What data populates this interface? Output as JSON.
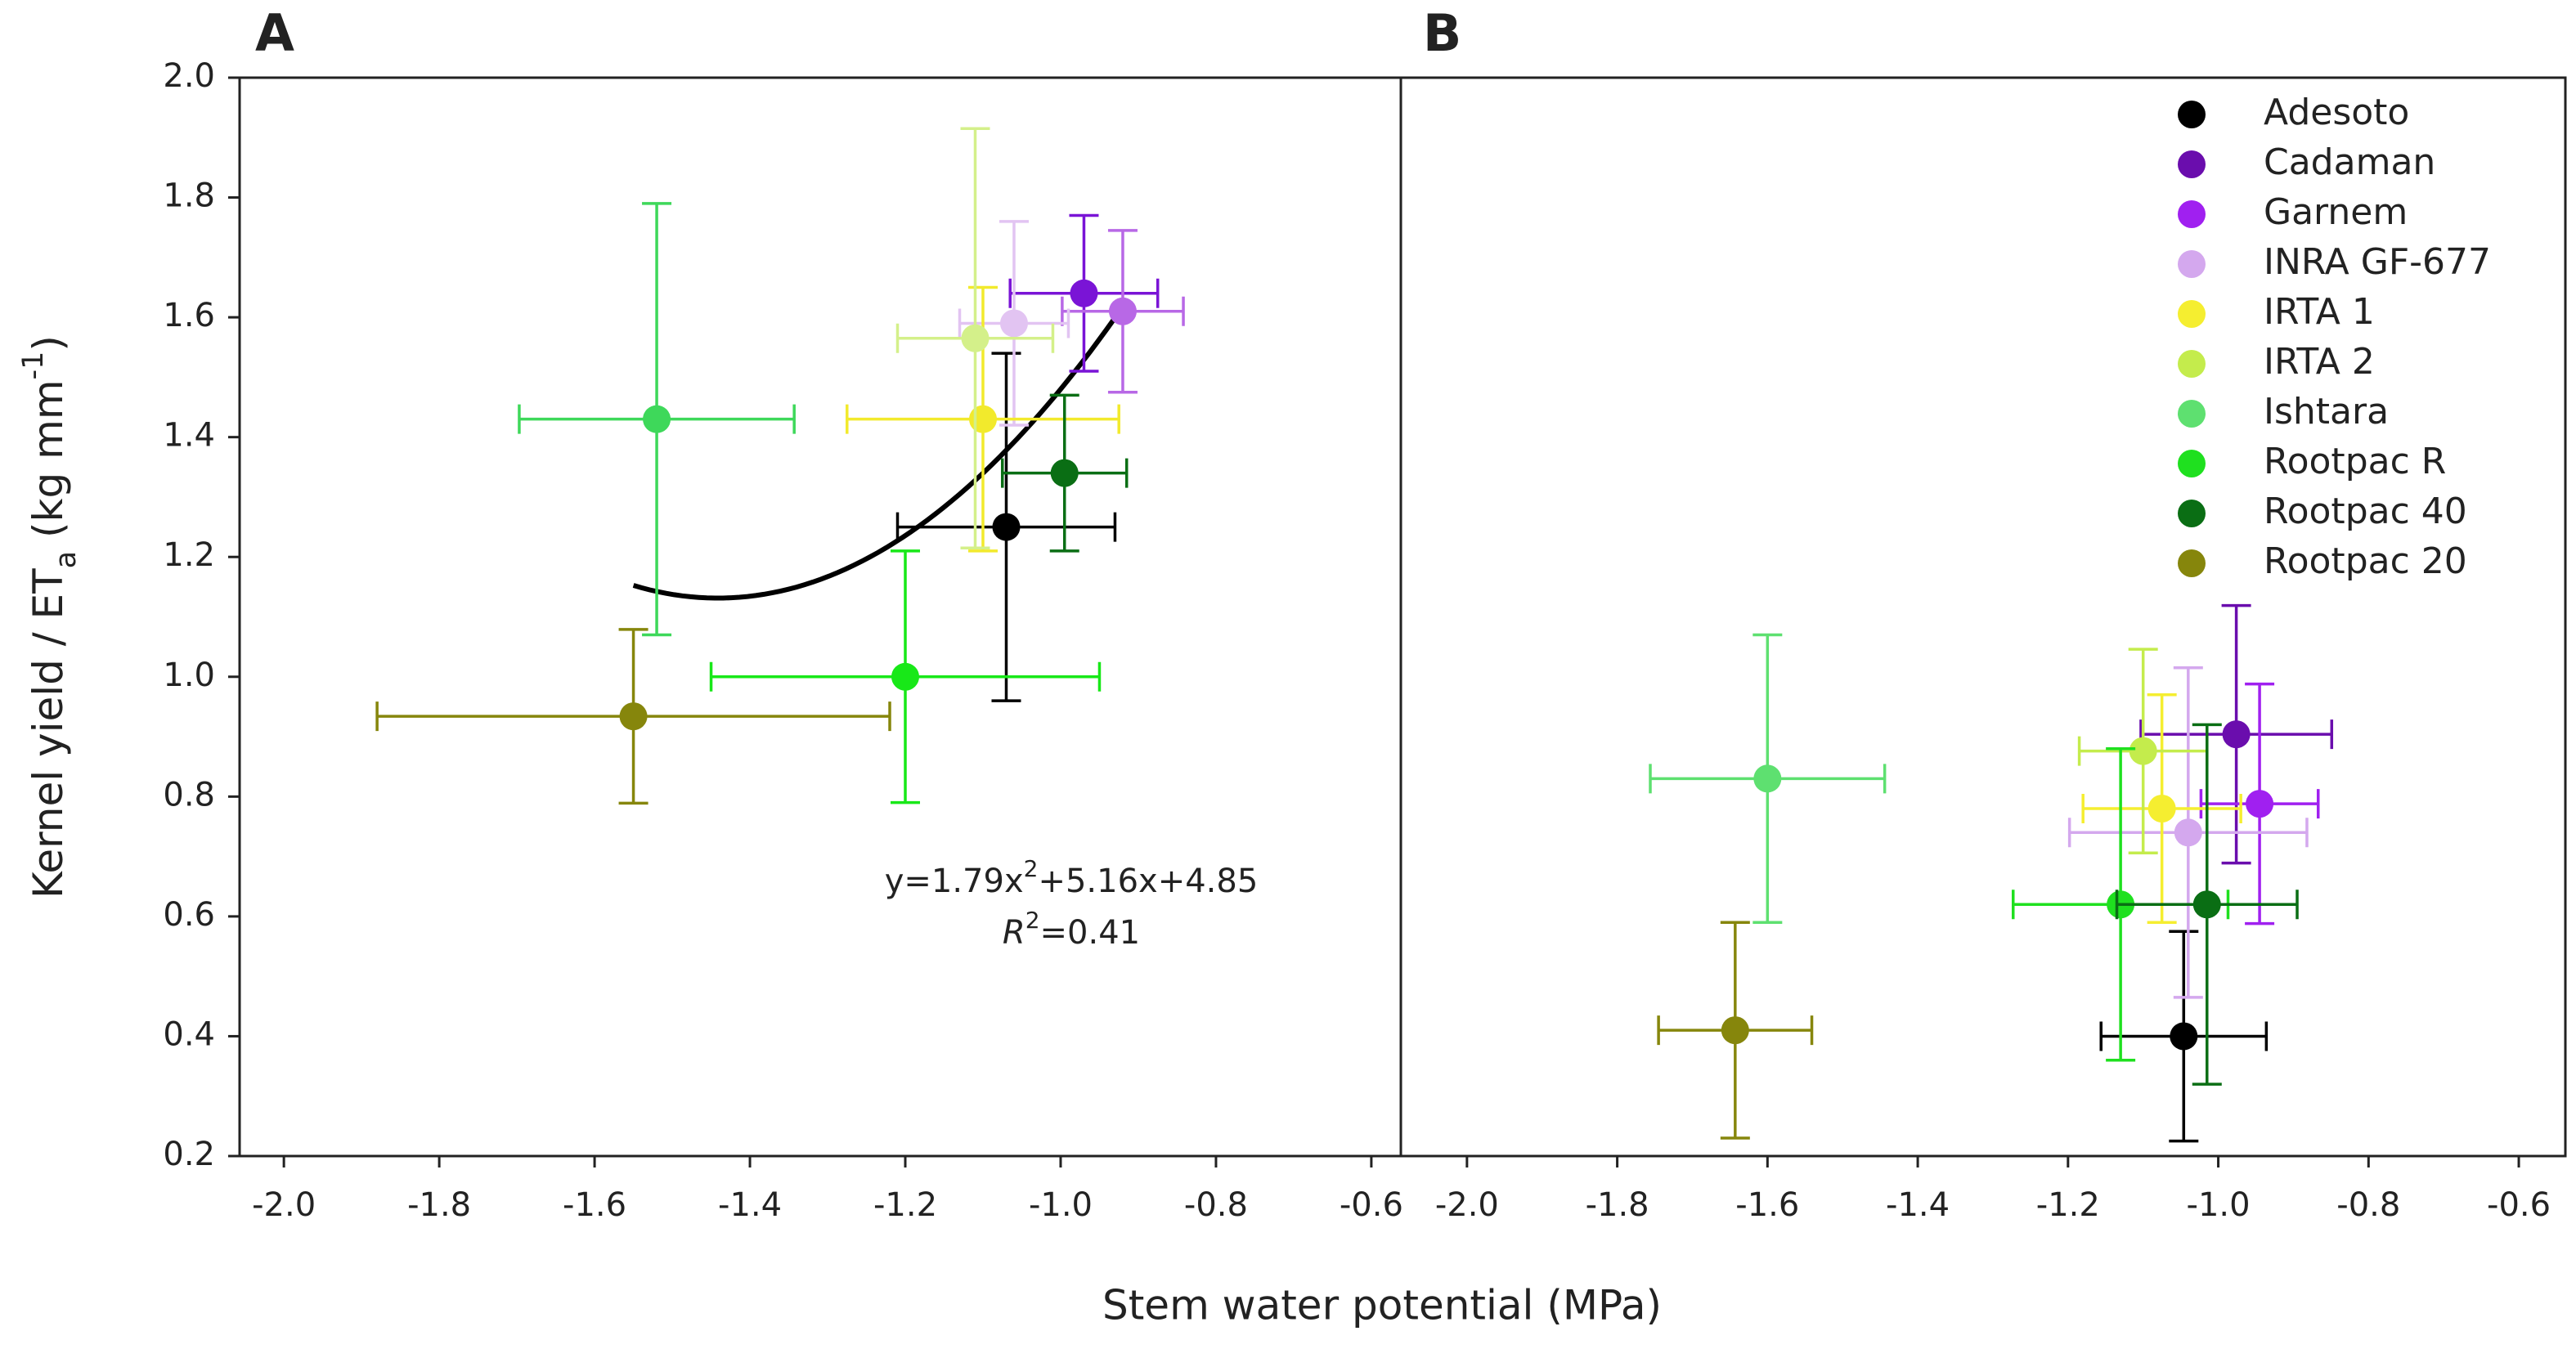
{
  "chart_data": [
    {
      "type": "scatter",
      "panel": "A",
      "y_label": [
        "Kernel yield / ET",
        "a",
        " (kg mm",
        "-1",
        ")"
      ],
      "x_label": "Stem water potential (MPa)",
      "xlim": [
        -2.057,
        -0.562
      ],
      "ylim": [
        0.2,
        2.0
      ],
      "xticks": [
        {
          "value": -2.0,
          "label": "-2.0"
        },
        -1.8,
        -1.6,
        -1.4,
        -1.2,
        {
          "value": -1.0,
          "label": "-1.0"
        },
        -0.8,
        -0.6
      ],
      "yticks": [
        0.2,
        0.4,
        0.6,
        0.8,
        {
          "value": 1.0,
          "label": "1.0"
        },
        1.2,
        1.4,
        1.6,
        1.8,
        {
          "value": 2.0,
          "label": "2.0"
        }
      ],
      "series": [
        {
          "color": "#000000",
          "x": [
            -1.07
          ],
          "values": [
            1.25
          ],
          "xerr": [
            0.14
          ],
          "yerr": [
            0.29
          ]
        },
        {
          "color": "#7a14d6",
          "x": [
            -0.97
          ],
          "values": [
            1.64
          ],
          "xerr": [
            0.095
          ],
          "yerr": [
            0.13
          ]
        },
        {
          "color": "#b868e6",
          "x": [
            -0.92
          ],
          "values": [
            1.61
          ],
          "xerr": [
            0.078
          ],
          "yerr": [
            0.135
          ]
        },
        {
          "color": "#e2c4f2",
          "x": [
            -1.06
          ],
          "values": [
            1.59
          ],
          "xerr": [
            0.07
          ],
          "yerr": [
            0.17
          ]
        },
        {
          "color": "#f2ea2c",
          "x": [
            -1.1
          ],
          "values": [
            1.43
          ],
          "xerr": [
            0.175
          ],
          "yerr": [
            0.22
          ]
        },
        {
          "color": "#d4f08a",
          "x": [
            -1.11
          ],
          "values": [
            1.565
          ],
          "xerr": [
            0.1
          ],
          "yerr": [
            0.35
          ]
        },
        {
          "color": "#3ed85a",
          "x": [
            -1.52
          ],
          "values": [
            1.43
          ],
          "xerr": [
            0.177
          ],
          "yerr": [
            0.36
          ]
        },
        {
          "color": "#18e818",
          "x": [
            -1.2
          ],
          "values": [
            1.0
          ],
          "xerr": [
            0.25
          ],
          "yerr": [
            0.21
          ]
        },
        {
          "color": "#0a6e14",
          "x": [
            -0.995
          ],
          "values": [
            1.34
          ],
          "xerr": [
            0.08
          ],
          "yerr": [
            0.13
          ]
        },
        {
          "color": "#86860c",
          "x": [
            -1.55
          ],
          "values": [
            0.934
          ],
          "xerr": [
            0.33
          ],
          "yerr": [
            0.145
          ]
        }
      ],
      "fit": {
        "a": 1.79,
        "b": 5.16,
        "c": 4.85,
        "x_range": [
          -1.55,
          -0.92
        ]
      },
      "equation": [
        "y=1.79x",
        "2",
        "+5.16x+4.85"
      ],
      "r2": [
        "R",
        "2",
        "=0.41"
      ]
    },
    {
      "type": "scatter",
      "panel": "B",
      "xlim": [
        -2.088,
        -0.538
      ],
      "ylim": [
        0.2,
        2.0
      ],
      "xticks": [
        {
          "value": -2.0,
          "label": "-2.0"
        },
        -1.8,
        -1.6,
        -1.4,
        -1.2,
        {
          "value": -1.0,
          "label": "-1.0"
        },
        -0.8,
        -0.6
      ],
      "legend": "upper right",
      "series": [
        {
          "name": "Adesoto",
          "color": "#000000",
          "x": [
            -1.046
          ],
          "values": [
            0.4
          ],
          "xerr": [
            0.11
          ],
          "yerr": [
            0.175
          ]
        },
        {
          "name": "Cadaman",
          "color": "#6a0dad",
          "x": [
            -0.976
          ],
          "values": [
            0.904
          ],
          "xerr": [
            0.127
          ],
          "yerr": [
            0.215
          ]
        },
        {
          "name": "Garnem",
          "color": "#a020f0",
          "x": [
            -0.945
          ],
          "values": [
            0.788
          ],
          "xerr": [
            0.078
          ],
          "yerr": [
            0.2
          ]
        },
        {
          "name": "INRA GF-677",
          "color": "#d4a8ee",
          "x": [
            -1.04
          ],
          "values": [
            0.74
          ],
          "xerr": [
            0.158
          ],
          "yerr": [
            0.275
          ]
        },
        {
          "name": "IRTA 1",
          "color": "#f5ee30",
          "x": [
            -1.075
          ],
          "values": [
            0.78
          ],
          "xerr": [
            0.105
          ],
          "yerr": [
            0.19
          ]
        },
        {
          "name": "IRTA 2",
          "color": "#c4ec4c",
          "x": [
            -1.1
          ],
          "values": [
            0.876
          ],
          "xerr": [
            0.085
          ],
          "yerr": [
            0.17
          ]
        },
        {
          "name": "Ishtara",
          "color": "#5ee070",
          "x": [
            -1.6
          ],
          "values": [
            0.83
          ],
          "xerr": [
            0.156
          ],
          "yerr": [
            0.24
          ]
        },
        {
          "name": "Rootpac R",
          "color": "#1fe01f",
          "x": [
            -1.13
          ],
          "values": [
            0.62
          ],
          "xerr": [
            0.143
          ],
          "yerr": [
            0.26
          ]
        },
        {
          "name": "Rootpac 40",
          "color": "#0a6e14",
          "x": [
            -1.015
          ],
          "values": [
            0.62
          ],
          "xerr": [
            0.12
          ],
          "yerr": [
            0.3
          ]
        },
        {
          "name": "Rootpac 20",
          "color": "#86860c",
          "x": [
            -1.643
          ],
          "values": [
            0.41
          ],
          "xerr": [
            0.102
          ],
          "yerr": [
            0.18
          ]
        }
      ]
    }
  ]
}
